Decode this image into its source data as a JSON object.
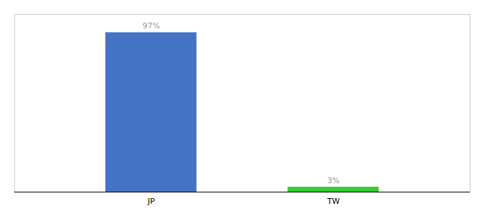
{
  "chart_data": {
    "type": "bar",
    "categories": [
      "JP",
      "TW"
    ],
    "values": [
      97,
      3
    ],
    "value_labels": [
      "97%",
      "3%"
    ],
    "data_labels": true,
    "colors": [
      "#4472c4",
      "#33cc33"
    ],
    "ylim": [
      0,
      108
    ],
    "tick_labels": "x",
    "grid": false
  }
}
